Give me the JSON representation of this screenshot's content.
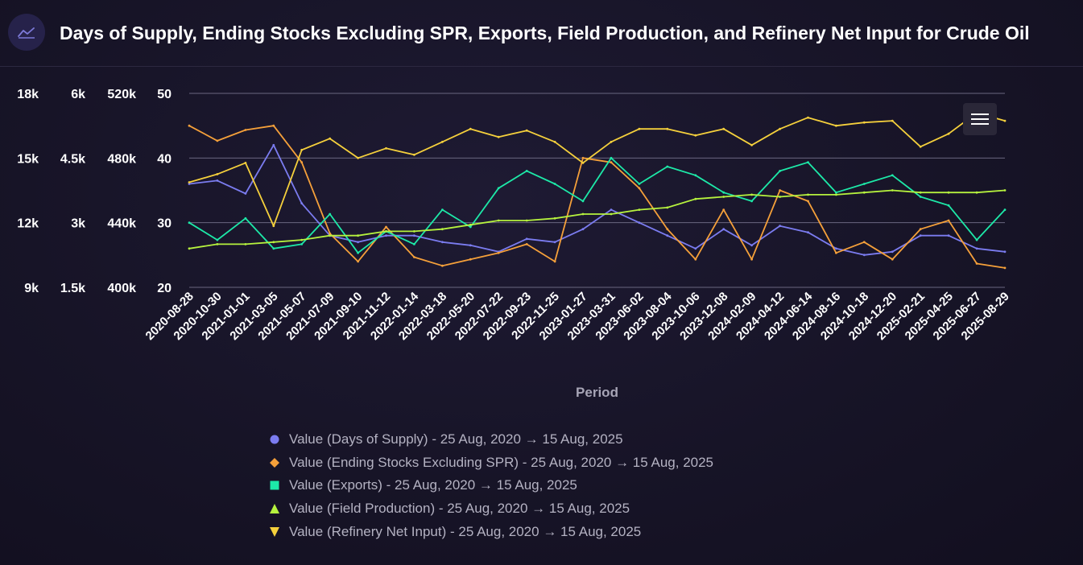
{
  "header": {
    "title": "Days of Supply, Ending Stocks Excluding SPR, Exports, Field Production, and Refinery Net Input for Crude Oil",
    "icon": "line-chart-icon"
  },
  "menu": {
    "icon": "hamburger-menu-icon"
  },
  "chart_data": {
    "type": "line",
    "xlabel": "Period",
    "x_ticks": [
      "2020-08-28",
      "2020-10-30",
      "2021-01-01",
      "2021-03-05",
      "2021-05-07",
      "2021-07-09",
      "2021-09-10",
      "2021-11-12",
      "2022-01-14",
      "2022-03-18",
      "2022-05-20",
      "2022-07-22",
      "2022-09-23",
      "2022-11-25",
      "2023-01-27",
      "2023-03-31",
      "2023-06-02",
      "2023-08-04",
      "2023-10-06",
      "2023-12-08",
      "2024-02-09",
      "2024-04-12",
      "2024-06-14",
      "2024-08-16",
      "2024-10-18",
      "2024-12-20",
      "2025-02-21",
      "2025-04-25",
      "2025-06-27",
      "2025-08-29"
    ],
    "x_range": [
      "2020-08-28",
      "2025-08-29"
    ],
    "y_axes": [
      {
        "ticks": [
          "9k",
          "12k",
          "15k",
          "18k"
        ],
        "range": [
          9000,
          18000
        ]
      },
      {
        "ticks": [
          "1.5k",
          "3k",
          "4.5k",
          "6k"
        ],
        "range": [
          1500,
          6000
        ]
      },
      {
        "ticks": [
          "400k",
          "440k",
          "480k",
          "520k"
        ],
        "range": [
          400000,
          520000
        ]
      },
      {
        "ticks": [
          "20",
          "30",
          "40",
          "50"
        ],
        "range": [
          20,
          50
        ]
      }
    ],
    "grid": true,
    "legend_position": "bottom",
    "series": [
      {
        "name": "Value (Days of Supply) - 25 Aug, 2020 → 15 Aug, 2025",
        "marker": "circle",
        "color": "#7b7cf0",
        "axis": 3,
        "x": [
          "2020-08-28",
          "2020-10-30",
          "2021-01-01",
          "2021-03-05",
          "2021-05-07",
          "2021-07-09",
          "2021-09-10",
          "2021-11-12",
          "2022-01-14",
          "2022-03-18",
          "2022-05-20",
          "2022-07-22",
          "2022-09-23",
          "2022-11-25",
          "2023-01-27",
          "2023-03-31",
          "2023-06-02",
          "2023-08-04",
          "2023-10-06",
          "2023-12-08",
          "2024-02-09",
          "2024-04-12",
          "2024-06-14",
          "2024-08-16",
          "2024-10-18",
          "2024-12-20",
          "2025-02-21",
          "2025-04-25",
          "2025-06-27",
          "2025-08-29"
        ],
        "values": [
          36,
          36.5,
          34.5,
          42,
          33,
          28,
          27,
          28,
          28,
          27,
          26.5,
          25.5,
          27.5,
          27,
          29,
          32,
          30,
          28,
          26,
          29,
          26.5,
          29.5,
          28.5,
          26,
          25,
          25.5,
          28,
          28,
          26,
          25.5
        ]
      },
      {
        "name": "Value (Ending Stocks Excluding SPR) - 25 Aug, 2020 → 15 Aug, 2025",
        "marker": "diamond",
        "color": "#f5a03a",
        "axis": 0,
        "x": [
          "2020-08-28",
          "2020-10-30",
          "2021-01-01",
          "2021-03-05",
          "2021-05-07",
          "2021-07-09",
          "2021-09-10",
          "2021-11-12",
          "2022-01-14",
          "2022-03-18",
          "2022-05-20",
          "2022-07-22",
          "2022-09-23",
          "2022-11-25",
          "2023-01-27",
          "2023-03-31",
          "2023-06-02",
          "2023-08-04",
          "2023-10-06",
          "2023-12-08",
          "2024-02-09",
          "2024-04-12",
          "2024-06-14",
          "2024-08-16",
          "2024-10-18",
          "2024-12-20",
          "2025-02-21",
          "2025-04-25",
          "2025-06-27",
          "2025-08-29"
        ],
        "values": [
          16500,
          15800,
          16300,
          16500,
          14800,
          11500,
          10200,
          11800,
          10400,
          10000,
          10300,
          10600,
          11000,
          10200,
          15000,
          14800,
          13600,
          11700,
          10300,
          12600,
          10300,
          13500,
          13000,
          10600,
          11100,
          10300,
          11700,
          12100,
          10100,
          9900
        ]
      },
      {
        "name": "Value (Exports) - 25 Aug, 2020 → 15 Aug, 2025",
        "marker": "square",
        "color": "#1de9a8",
        "axis": 1,
        "x": [
          "2020-08-28",
          "2020-10-30",
          "2021-01-01",
          "2021-03-05",
          "2021-05-07",
          "2021-07-09",
          "2021-09-10",
          "2021-11-12",
          "2022-01-14",
          "2022-03-18",
          "2022-05-20",
          "2022-07-22",
          "2022-09-23",
          "2022-11-25",
          "2023-01-27",
          "2023-03-31",
          "2023-06-02",
          "2023-08-04",
          "2023-10-06",
          "2023-12-08",
          "2024-02-09",
          "2024-04-12",
          "2024-06-14",
          "2024-08-16",
          "2024-10-18",
          "2024-12-20",
          "2025-02-21",
          "2025-04-25",
          "2025-06-27",
          "2025-08-29"
        ],
        "values": [
          3000,
          2600,
          3100,
          2400,
          2500,
          3200,
          2300,
          2800,
          2500,
          3300,
          2900,
          3800,
          4200,
          3900,
          3500,
          4500,
          3900,
          4300,
          4100,
          3700,
          3500,
          4200,
          4400,
          3700,
          3900,
          4100,
          3600,
          3400,
          2600,
          3300
        ]
      },
      {
        "name": "Value (Field Production) - 25 Aug, 2020 → 15 Aug, 2025",
        "marker": "triangle-up",
        "color": "#b6f23e",
        "axis": 0,
        "x": [
          "2020-08-28",
          "2020-10-30",
          "2021-01-01",
          "2021-03-05",
          "2021-05-07",
          "2021-07-09",
          "2021-09-10",
          "2021-11-12",
          "2022-01-14",
          "2022-03-18",
          "2022-05-20",
          "2022-07-22",
          "2022-09-23",
          "2022-11-25",
          "2023-01-27",
          "2023-03-31",
          "2023-06-02",
          "2023-08-04",
          "2023-10-06",
          "2023-12-08",
          "2024-02-09",
          "2024-04-12",
          "2024-06-14",
          "2024-08-16",
          "2024-10-18",
          "2024-12-20",
          "2025-02-21",
          "2025-04-25",
          "2025-06-27",
          "2025-08-29"
        ],
        "values": [
          10800,
          11000,
          11000,
          11100,
          11200,
          11400,
          11400,
          11600,
          11600,
          11700,
          11900,
          12100,
          12100,
          12200,
          12400,
          12400,
          12600,
          12700,
          13100,
          13200,
          13300,
          13200,
          13300,
          13300,
          13400,
          13500,
          13400,
          13400,
          13400,
          13500
        ]
      },
      {
        "name": "Value (Refinery Net Input) - 25 Aug, 2020 → 15 Aug, 2025",
        "marker": "triangle-down",
        "color": "#f5d03c",
        "axis": 2,
        "x": [
          "2020-08-28",
          "2020-10-30",
          "2021-01-01",
          "2021-03-05",
          "2021-05-07",
          "2021-07-09",
          "2021-09-10",
          "2021-11-12",
          "2022-01-14",
          "2022-03-18",
          "2022-05-20",
          "2022-07-22",
          "2022-09-23",
          "2022-11-25",
          "2023-01-27",
          "2023-03-31",
          "2023-06-02",
          "2023-08-04",
          "2023-10-06",
          "2023-12-08",
          "2024-02-09",
          "2024-04-12",
          "2024-06-14",
          "2024-08-16",
          "2024-10-18",
          "2024-12-20",
          "2025-02-21",
          "2025-04-25",
          "2025-06-27",
          "2025-08-29"
        ],
        "values": [
          465000,
          470000,
          477000,
          438000,
          485000,
          492000,
          480000,
          486000,
          482000,
          490000,
          498000,
          493000,
          497000,
          490000,
          477000,
          490000,
          498000,
          498000,
          494000,
          498000,
          488000,
          498000,
          505000,
          500000,
          502000,
          503000,
          487000,
          495000,
          508000,
          503000
        ]
      }
    ]
  }
}
